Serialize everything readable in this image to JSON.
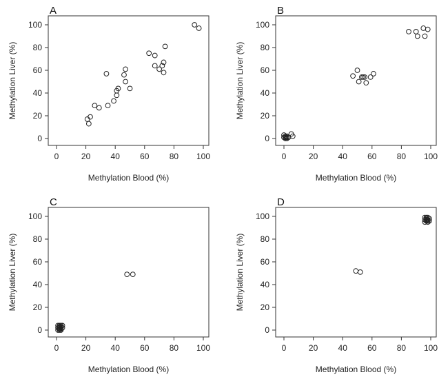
{
  "chart_data": [
    {
      "type": "scatter",
      "panel_label": "A",
      "xlabel": "Methylation Blood (%)",
      "ylabel": "Methylation Liver (%)",
      "xlim": [
        0,
        100
      ],
      "ylim": [
        0,
        100
      ],
      "xticks": [
        "0",
        "20",
        "40",
        "60",
        "80",
        "100"
      ],
      "yticks": [
        "0",
        "20",
        "40",
        "60",
        "80",
        "100"
      ],
      "grid": false,
      "marker": "open-circle",
      "series": [
        {
          "x": [
            21,
            22,
            23,
            26,
            29,
            34,
            35,
            39,
            41,
            41,
            42,
            47,
            46,
            47,
            50,
            63,
            67,
            67,
            70,
            72,
            73,
            73,
            74,
            94,
            97
          ],
          "y": [
            17,
            13,
            19,
            29,
            27,
            57,
            29,
            33,
            42,
            38,
            44,
            61,
            56,
            50,
            44,
            75,
            73,
            64,
            61,
            64,
            67,
            58,
            81,
            100,
            97
          ]
        }
      ]
    },
    {
      "type": "scatter",
      "panel_label": "B",
      "xlabel": "Methylation Blood (%)",
      "ylabel": "Methylation Liver (%)",
      "xlim": [
        0,
        100
      ],
      "ylim": [
        0,
        100
      ],
      "xticks": [
        "0",
        "20",
        "40",
        "60",
        "80",
        "100"
      ],
      "yticks": [
        "0",
        "20",
        "40",
        "60",
        "80",
        "100"
      ],
      "grid": false,
      "marker": "open-circle",
      "series": [
        {
          "x": [
            0,
            0,
            1,
            1,
            1,
            2,
            2,
            2,
            3,
            5,
            6,
            47,
            50,
            51,
            53,
            54,
            55,
            56,
            59,
            61,
            85,
            90,
            91,
            95,
            96,
            98
          ],
          "y": [
            1,
            3,
            0,
            1,
            2,
            0,
            1,
            2,
            1,
            4,
            2,
            55,
            60,
            50,
            54,
            54,
            54,
            49,
            54,
            57,
            94,
            94,
            90,
            97,
            90,
            96
          ]
        }
      ]
    },
    {
      "type": "scatter",
      "panel_label": "C",
      "xlabel": "Methylation Blood (%)",
      "ylabel": "Methylation Liver (%)",
      "xlim": [
        0,
        100
      ],
      "ylim": [
        0,
        100
      ],
      "xticks": [
        "0",
        "20",
        "40",
        "60",
        "80",
        "100"
      ],
      "yticks": [
        "0",
        "20",
        "40",
        "60",
        "80",
        "100"
      ],
      "grid": false,
      "marker": "open-circle",
      "series": [
        {
          "x": [
            1,
            1,
            1,
            2,
            2,
            2,
            2,
            3,
            3,
            3,
            3,
            4,
            4,
            2,
            3,
            48,
            52
          ],
          "y": [
            0,
            2,
            4,
            1,
            3,
            0,
            4,
            1,
            2,
            4,
            0,
            2,
            4,
            2,
            3,
            49,
            49
          ]
        }
      ]
    },
    {
      "type": "scatter",
      "panel_label": "D",
      "xlabel": "Methylation Blood (%)",
      "ylabel": "Methylation Liver (%)",
      "xlim": [
        0,
        100
      ],
      "ylim": [
        0,
        100
      ],
      "xticks": [
        "0",
        "20",
        "40",
        "60",
        "80",
        "100"
      ],
      "yticks": [
        "0",
        "20",
        "40",
        "60",
        "80",
        "100"
      ],
      "grid": false,
      "marker": "open-circle",
      "series": [
        {
          "x": [
            49,
            52,
            96,
            96,
            97,
            97,
            98,
            98,
            99,
            96,
            97,
            98,
            99,
            97,
            98
          ],
          "y": [
            52,
            51,
            95,
            97,
            96,
            98,
            95,
            97,
            96,
            99,
            99,
            99,
            98,
            97,
            96
          ]
        }
      ]
    }
  ]
}
